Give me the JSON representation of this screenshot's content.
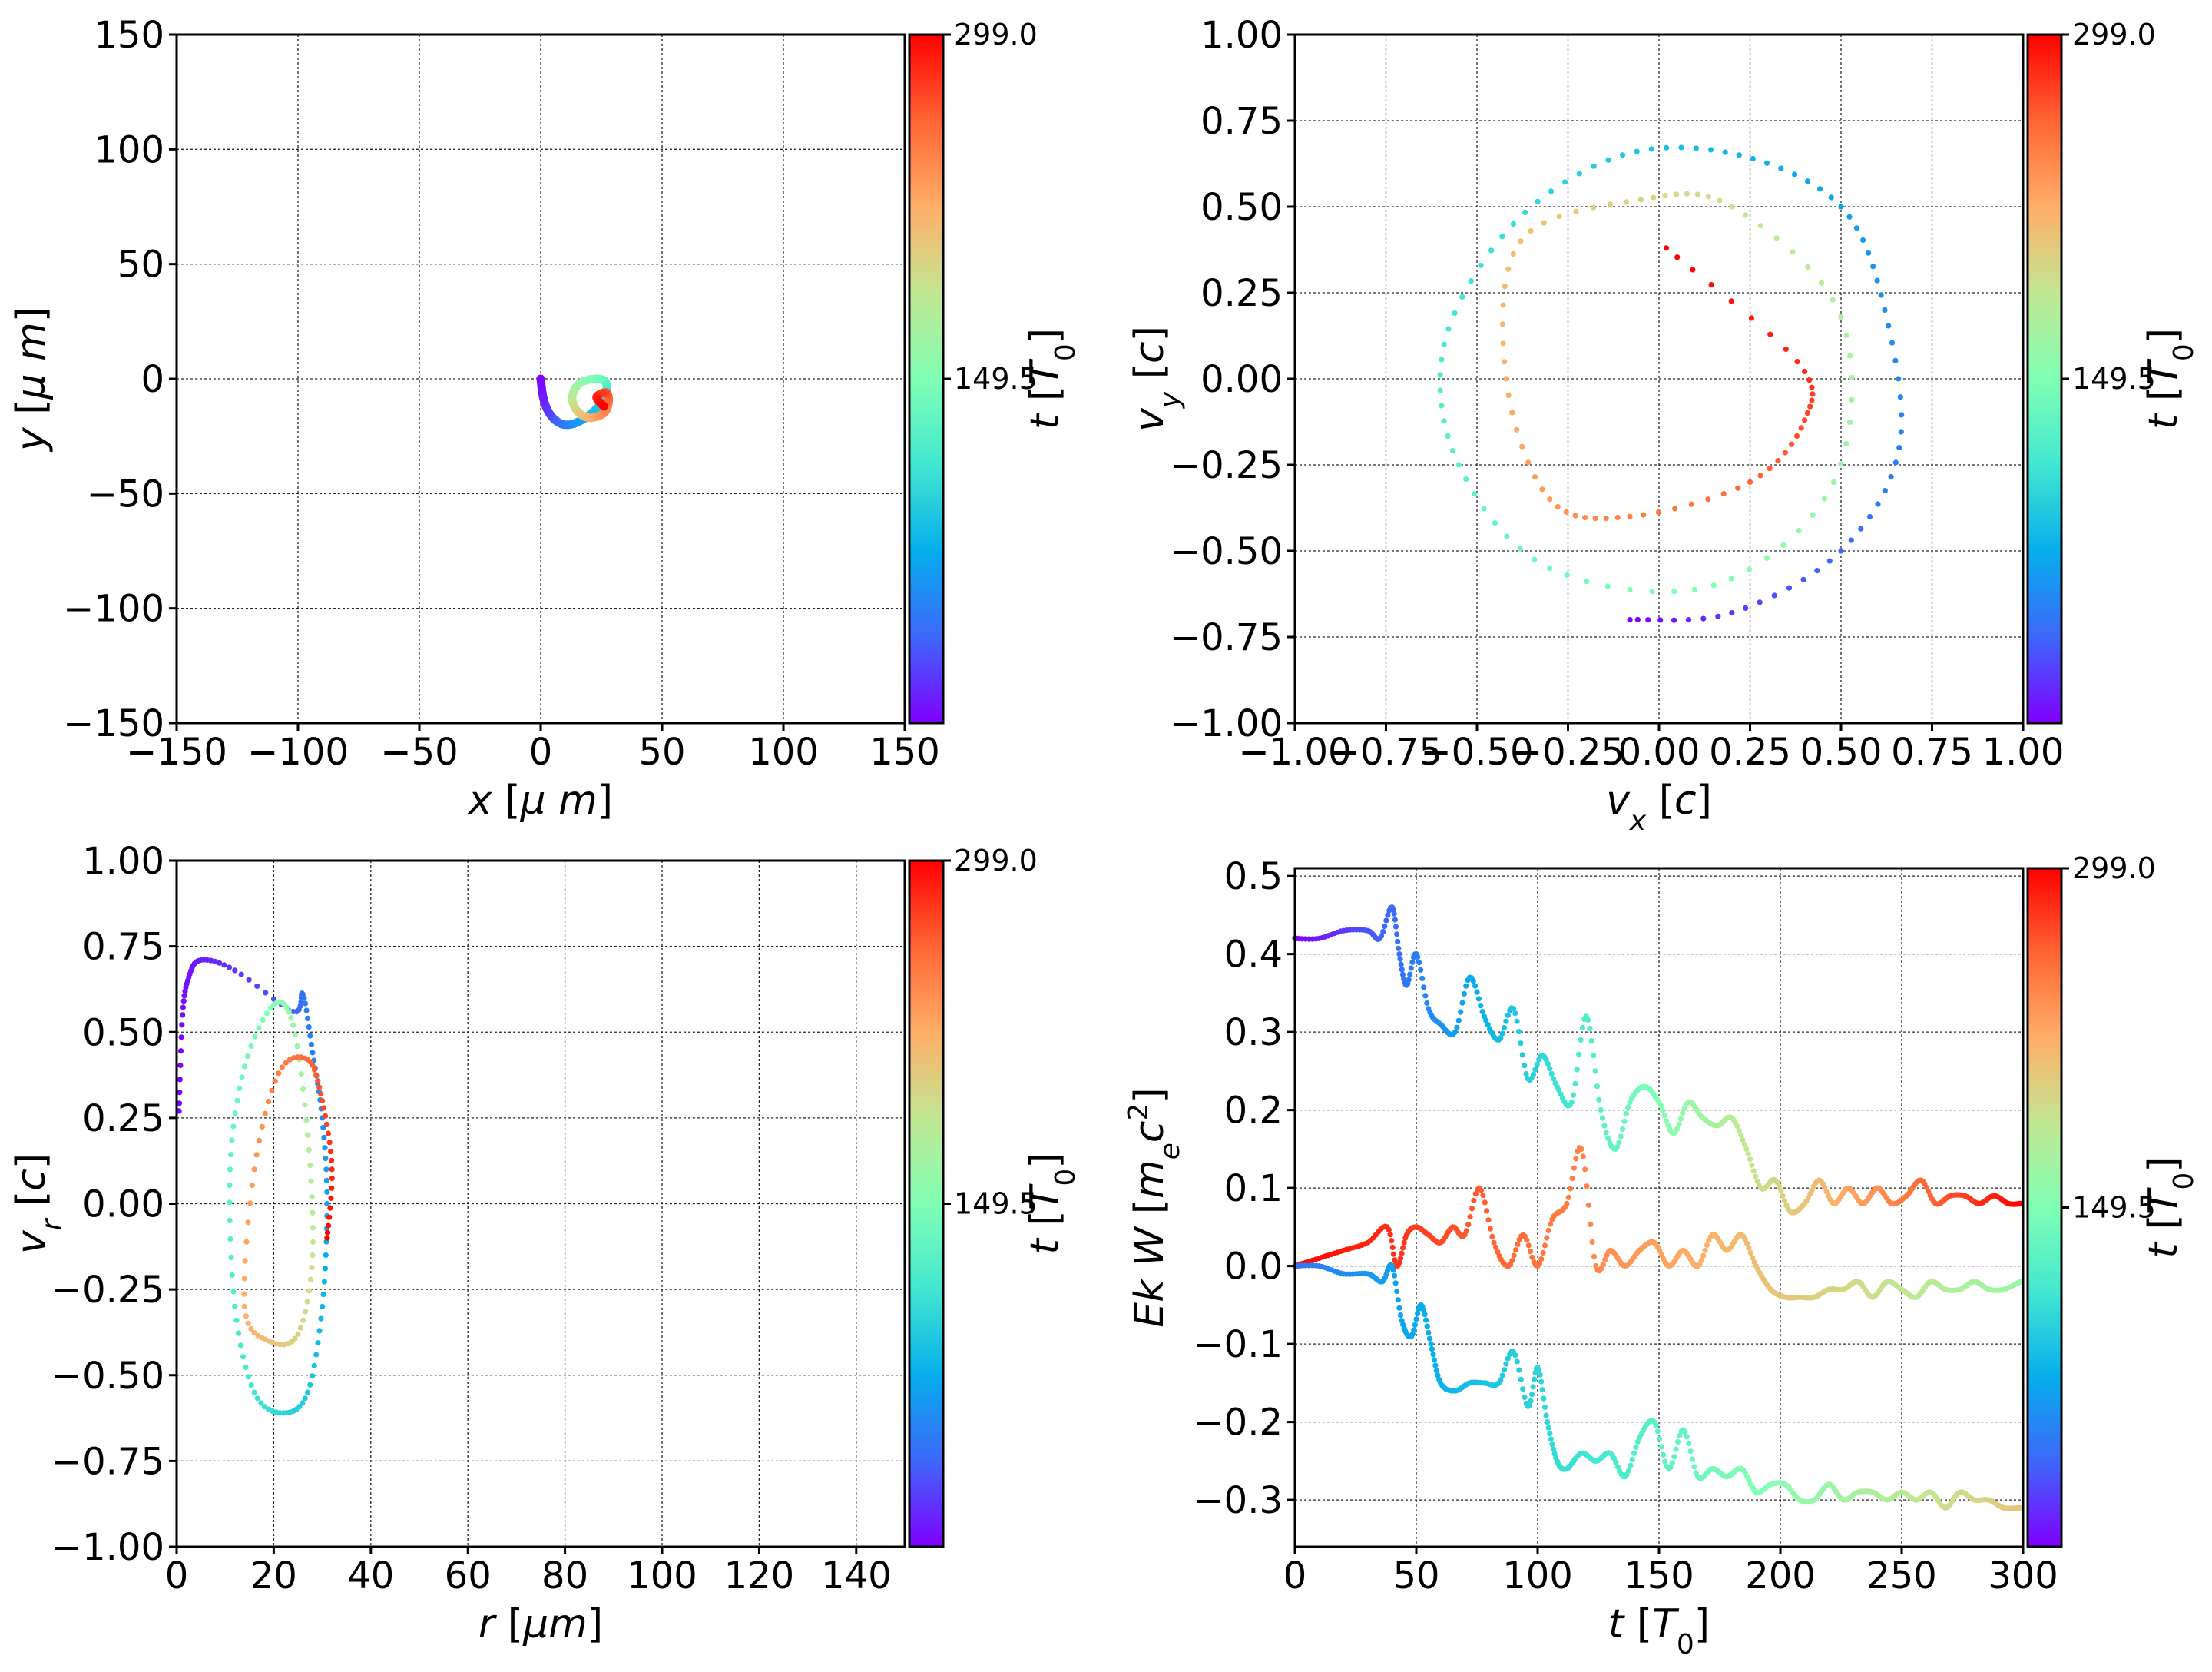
{
  "colormap": [
    "#8000ff",
    "#3d67fa",
    "#06aeec",
    "#42e7d1",
    "#80ffb4",
    "#c2e792",
    "#ffae68",
    "#ff6534",
    "#ff0000"
  ],
  "chart_data": [
    {
      "id": "xy",
      "type": "scatter",
      "xlabel": "x  [μ m]",
      "ylabel": "y  [μ m]",
      "xlim": [
        -150,
        150
      ],
      "ylim": [
        -150,
        150
      ],
      "xticks": [
        -150,
        -100,
        -50,
        0,
        50,
        100,
        150
      ],
      "xtick_labels": [
        "−150",
        "−100",
        "−50",
        "0",
        "50",
        "100",
        "150"
      ],
      "yticks": [
        -150,
        -100,
        -50,
        0,
        50,
        100,
        150
      ],
      "ytick_labels": [
        "−150",
        "−100",
        "−50",
        "0",
        "50",
        "100",
        "150"
      ],
      "grid": true,
      "colorbar": {
        "label": "t [T0]",
        "ticks": [
          "149.5",
          "299.0"
        ],
        "range": [
          0,
          299
        ]
      },
      "series": [
        {
          "t": [
            0,
            8,
            18,
            30,
            45,
            62,
            80,
            100,
            120,
            140,
            160,
            180,
            200,
            220,
            240,
            255,
            270,
            285,
            299
          ],
          "x": [
            0,
            1,
            3,
            6,
            10,
            15,
            21,
            26,
            27,
            23,
            16,
            13,
            15,
            20,
            26,
            28,
            27,
            23,
            26
          ],
          "y": [
            0,
            -8,
            -14,
            -18,
            -20,
            -19,
            -15,
            -9,
            -2,
            0,
            -2,
            -8,
            -14,
            -17,
            -15,
            -10,
            -6,
            -8,
            -12
          ]
        }
      ]
    },
    {
      "id": "vxvy",
      "type": "scatter",
      "xlabel": "vx [c]",
      "ylabel": "vy [c]",
      "xlim": [
        -1,
        1
      ],
      "ylim": [
        -1,
        1
      ],
      "xticks": [
        -1,
        -0.75,
        -0.5,
        -0.25,
        0,
        0.25,
        0.5,
        0.75,
        1
      ],
      "xtick_labels": [
        "−1.00",
        "−0.75",
        "−0.50",
        "−0.25",
        "0.00",
        "0.25",
        "0.50",
        "0.75",
        "1.00"
      ],
      "yticks": [
        -1,
        -0.75,
        -0.5,
        -0.25,
        0,
        0.25,
        0.5,
        0.75,
        1
      ],
      "ytick_labels": [
        "−1.00",
        "−0.75",
        "−0.50",
        "−0.25",
        "0.00",
        "0.25",
        "0.50",
        "0.75",
        "1.00"
      ],
      "grid": true,
      "colorbar": {
        "label": "t [T0]",
        "ticks": [
          "149.5",
          "299.0"
        ],
        "range": [
          0,
          299
        ]
      },
      "series": [
        {
          "t": [
            0,
            20,
            40,
            50,
            58,
            68,
            80,
            92,
            104,
            116,
            128,
            140,
            152,
            164,
            176,
            188,
            200,
            212,
            224,
            236,
            248,
            260,
            272,
            284,
            299
          ],
          "x": [
            -0.08,
            0.2,
            0.5,
            0.66,
            0.62,
            0.5,
            0.22,
            -0.1,
            -0.4,
            -0.59,
            -0.55,
            -0.3,
            0.15,
            0.48,
            0.5,
            0.2,
            -0.05,
            -0.38,
            -0.42,
            -0.3,
            -0.08,
            0.25,
            0.4,
            0.38,
            0.02
          ],
          "y": [
            -0.7,
            -0.68,
            -0.5,
            -0.2,
            0.2,
            0.5,
            0.65,
            0.65,
            0.45,
            0.1,
            -0.25,
            -0.55,
            -0.6,
            -0.3,
            0.18,
            0.5,
            0.52,
            0.4,
            0.0,
            -0.35,
            -0.4,
            -0.3,
            -0.12,
            0.05,
            0.38
          ]
        }
      ]
    },
    {
      "id": "rvr",
      "type": "scatter",
      "xlabel": "r [μm]",
      "ylabel": "vr [c]",
      "xlim": [
        0,
        150
      ],
      "ylim": [
        -1,
        1
      ],
      "xticks": [
        0,
        20,
        40,
        60,
        80,
        100,
        120,
        140
      ],
      "xtick_labels": [
        "0",
        "20",
        "40",
        "60",
        "80",
        "100",
        "120",
        "140"
      ],
      "yticks": [
        -1,
        -0.75,
        -0.5,
        -0.25,
        0,
        0.25,
        0.5,
        0.75,
        1
      ],
      "ytick_labels": [
        "−1.00",
        "−0.75",
        "−0.50",
        "−0.25",
        "0.00",
        "0.25",
        "0.50",
        "0.75",
        "1.00"
      ],
      "grid": true,
      "colorbar": {
        "label": "t [T0]",
        "ticks": [
          "149.5",
          "299.0"
        ],
        "range": [
          0,
          299
        ]
      },
      "series": [
        {
          "t": [
            0,
            3,
            6,
            10,
            20,
            35,
            45,
            52,
            60,
            70,
            80,
            90,
            100,
            110,
            120,
            130,
            140,
            152,
            164,
            176,
            188,
            200,
            212,
            224,
            236,
            248,
            260,
            272,
            284,
            299
          ],
          "x": [
            0.5,
            1.2,
            2.5,
            5,
            12,
            24,
            26,
            28,
            30,
            31,
            30,
            27,
            22,
            16,
            12,
            11,
            14,
            20,
            24,
            27,
            28,
            25,
            19,
            14,
            16,
            21,
            27,
            30,
            32,
            31
          ],
          "y": [
            0.27,
            0.55,
            0.66,
            0.71,
            0.68,
            0.56,
            0.61,
            0.44,
            0.25,
            0.0,
            -0.3,
            -0.55,
            -0.61,
            -0.55,
            -0.3,
            0.1,
            0.4,
            0.58,
            0.52,
            0.2,
            -0.15,
            -0.38,
            -0.4,
            -0.3,
            0.1,
            0.38,
            0.42,
            0.3,
            0.1,
            -0.1
          ]
        }
      ]
    },
    {
      "id": "energy",
      "type": "scatter",
      "xlabel": "t [T0]",
      "ylabel": "Ek W [mec2]",
      "xlim": [
        0,
        300
      ],
      "ylim": [
        -0.36,
        0.51
      ],
      "xticks": [
        0,
        50,
        100,
        150,
        200,
        250,
        300
      ],
      "xtick_labels": [
        "0",
        "50",
        "100",
        "150",
        "200",
        "250",
        "300"
      ],
      "yticks": [
        -0.3,
        -0.2,
        -0.1,
        0.0,
        0.1,
        0.2,
        0.3,
        0.4,
        0.5
      ],
      "ytick_labels": [
        "−0.3",
        "−0.2",
        "−0.1",
        "0.0",
        "0.1",
        "0.2",
        "0.3",
        "0.4",
        "0.5"
      ],
      "grid": true,
      "colorbar": {
        "label": "t [T0]",
        "ticks": [
          "149.5",
          "299.0"
        ],
        "range": [
          0,
          299
        ]
      },
      "series": [
        {
          "cmap_reverse": true,
          "t": [
            0,
            10,
            20,
            30,
            38,
            42,
            46,
            50,
            55,
            60,
            65,
            70,
            76,
            82,
            88,
            94,
            100,
            106,
            112,
            118,
            124,
            130,
            136,
            142,
            148,
            154,
            160,
            166,
            172,
            178,
            184,
            190,
            196,
            202,
            208,
            214,
            220,
            226,
            232,
            238,
            244,
            250,
            256,
            262,
            268,
            274,
            280,
            286,
            292,
            299
          ],
          "y": [
            0.0,
            0.01,
            0.02,
            0.03,
            0.05,
            0.0,
            0.04,
            0.05,
            0.04,
            0.03,
            0.05,
            0.04,
            0.1,
            0.03,
            0.0,
            0.04,
            0.0,
            0.06,
            0.08,
            0.15,
            0.0,
            0.02,
            0.0,
            0.02,
            0.03,
            0.0,
            0.02,
            0.0,
            0.04,
            0.02,
            0.04,
            0.0,
            -0.03,
            -0.04,
            -0.04,
            -0.04,
            -0.03,
            -0.03,
            -0.02,
            -0.04,
            -0.02,
            -0.03,
            -0.04,
            -0.02,
            -0.03,
            -0.03,
            -0.02,
            -0.03,
            -0.03,
            -0.02
          ]
        },
        {
          "cmap_reverse": false,
          "t": [
            0,
            10,
            20,
            30,
            35,
            40,
            43,
            46,
            50,
            55,
            60,
            66,
            72,
            78,
            84,
            90,
            96,
            102,
            108,
            114,
            120,
            126,
            132,
            138,
            144,
            150,
            156,
            162,
            168,
            174,
            180,
            186,
            192,
            198,
            204,
            210,
            216,
            222,
            228,
            234,
            240,
            246,
            252,
            258,
            264,
            270,
            276,
            282,
            288,
            294,
            299
          ],
          "y": [
            0.42,
            0.42,
            0.43,
            0.43,
            0.42,
            0.46,
            0.4,
            0.36,
            0.4,
            0.33,
            0.31,
            0.3,
            0.37,
            0.32,
            0.29,
            0.33,
            0.24,
            0.27,
            0.23,
            0.21,
            0.32,
            0.2,
            0.15,
            0.21,
            0.23,
            0.21,
            0.17,
            0.21,
            0.19,
            0.18,
            0.19,
            0.15,
            0.1,
            0.11,
            0.07,
            0.08,
            0.11,
            0.08,
            0.1,
            0.08,
            0.1,
            0.08,
            0.09,
            0.11,
            0.08,
            0.09,
            0.09,
            0.08,
            0.09,
            0.08,
            0.08
          ]
        },
        {
          "cmap_reverse": false,
          "offset": 0.5,
          "t": [
            0,
            10,
            20,
            30,
            36,
            40,
            44,
            48,
            52,
            56,
            60,
            66,
            72,
            78,
            84,
            90,
            96,
            100,
            104,
            108,
            112,
            118,
            124,
            130,
            136,
            142,
            148,
            154,
            160,
            166,
            172,
            178,
            184,
            190,
            196,
            202,
            208,
            214,
            220,
            226,
            232,
            238,
            244,
            250,
            256,
            262,
            268,
            274,
            280,
            286,
            292,
            299
          ],
          "y": [
            0.0,
            0.0,
            -0.01,
            -0.01,
            -0.02,
            0.0,
            -0.07,
            -0.09,
            -0.05,
            -0.1,
            -0.15,
            -0.16,
            -0.15,
            -0.15,
            -0.15,
            -0.11,
            -0.18,
            -0.13,
            -0.2,
            -0.25,
            -0.26,
            -0.24,
            -0.25,
            -0.24,
            -0.27,
            -0.22,
            -0.2,
            -0.26,
            -0.21,
            -0.27,
            -0.26,
            -0.27,
            -0.26,
            -0.29,
            -0.28,
            -0.28,
            -0.3,
            -0.3,
            -0.28,
            -0.3,
            -0.29,
            -0.29,
            -0.3,
            -0.29,
            -0.3,
            -0.29,
            -0.31,
            -0.29,
            -0.3,
            -0.3,
            -0.31,
            -0.31
          ]
        }
      ]
    }
  ]
}
